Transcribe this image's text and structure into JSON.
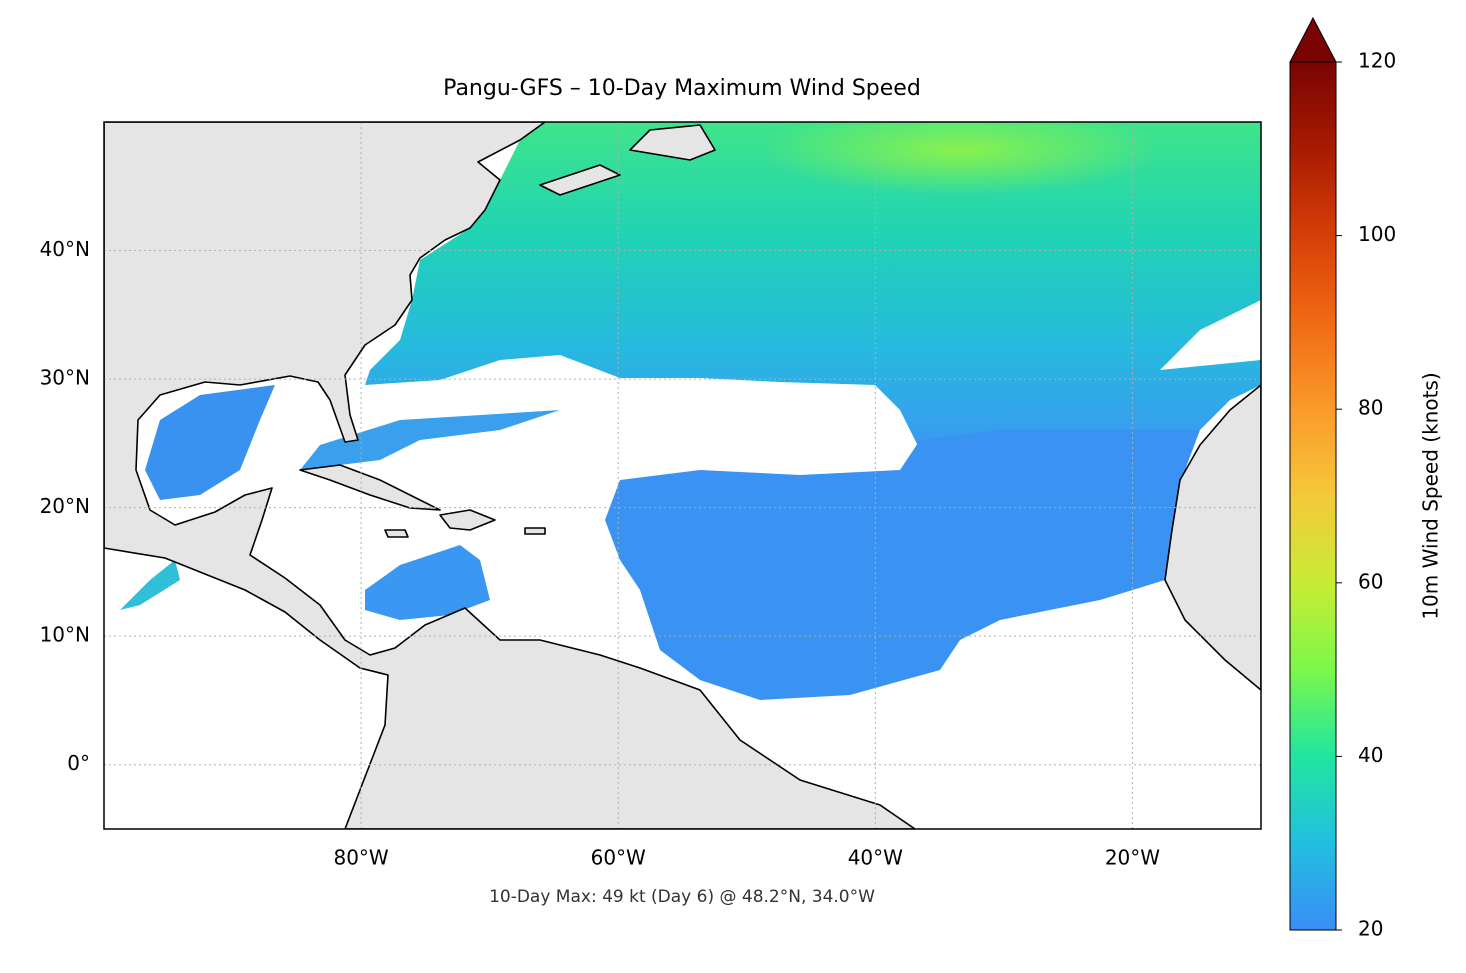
{
  "chart_data": {
    "type": "map",
    "title": "Pangu-GFS – 10-Day Maximum Wind Speed",
    "annotation": "10-Day Max: 49 kt (Day 6) @ 48.2°N, 34.0°W",
    "xlim": [
      -100,
      -10
    ],
    "ylim": [
      -5,
      50
    ],
    "xticks": [
      {
        "value": -80,
        "label": "80°W"
      },
      {
        "value": -60,
        "label": "60°W"
      },
      {
        "value": -40,
        "label": "40°W"
      },
      {
        "value": -20,
        "label": "20°W"
      }
    ],
    "yticks": [
      {
        "value": 0,
        "label": "0°"
      },
      {
        "value": 10,
        "label": "10°N"
      },
      {
        "value": 20,
        "label": "20°N"
      },
      {
        "value": 30,
        "label": "30°N"
      },
      {
        "value": 40,
        "label": "40°N"
      }
    ],
    "grid": true,
    "colorbar": {
      "label": "10m Wind Speed (knots)",
      "lim": [
        20,
        120
      ],
      "ticks": [
        20,
        40,
        60,
        80,
        100,
        120
      ],
      "extend": "max"
    }
  }
}
